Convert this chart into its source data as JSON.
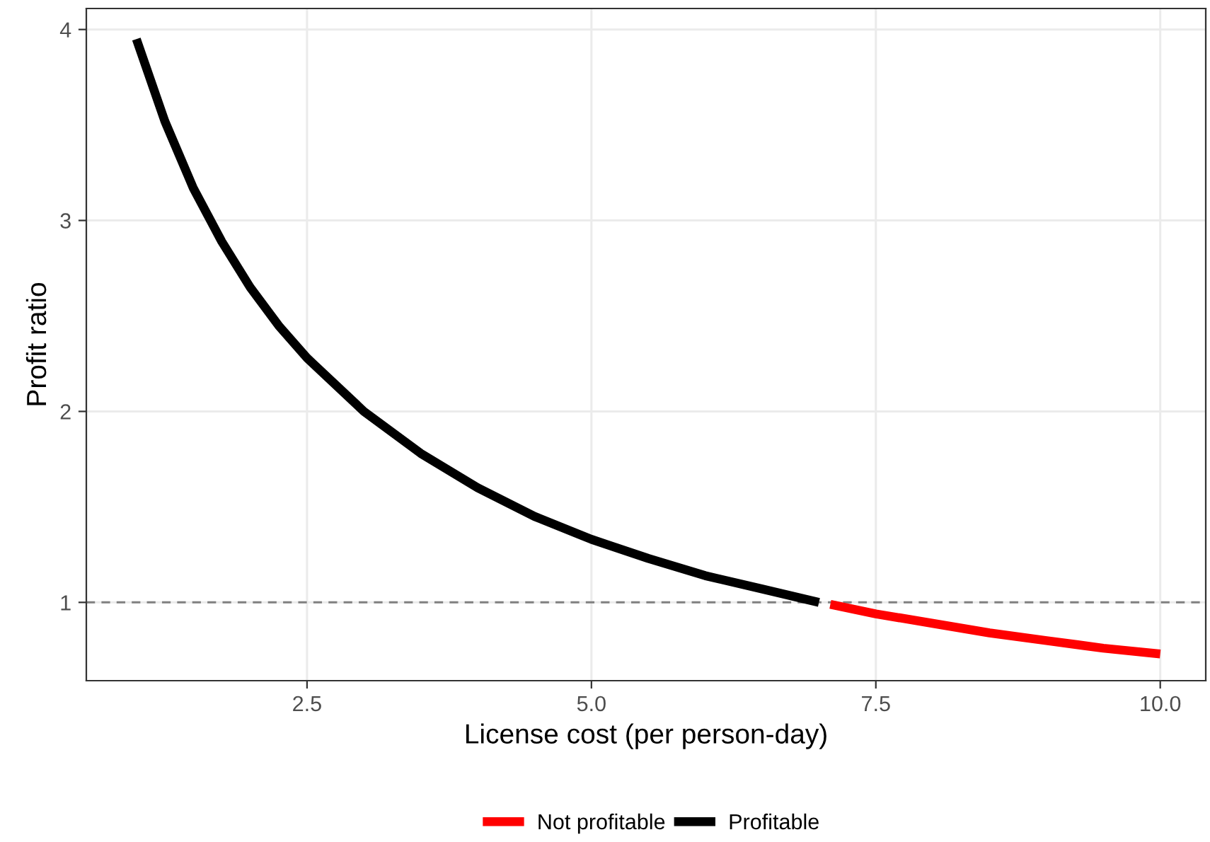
{
  "chart_data": {
    "type": "line",
    "xlabel": "License cost (per person-day)",
    "ylabel": "Profit ratio",
    "xlim": [
      0.56,
      10.4
    ],
    "ylim": [
      0.59,
      4.11
    ],
    "xticks": [
      {
        "value": 2.5,
        "label": "2.5"
      },
      {
        "value": 5,
        "label": "5.0"
      },
      {
        "value": 7.5,
        "label": "7.5"
      },
      {
        "value": 10,
        "label": "10.0"
      }
    ],
    "yticks": [
      1,
      2,
      3,
      4
    ],
    "grid": true,
    "legend": "bottom",
    "line_style": "solid",
    "marker": "none",
    "ref_lines": [
      {
        "axis": "y",
        "value": 1,
        "label": null,
        "color": "#808080",
        "line_style": "dashed"
      }
    ],
    "series": [
      {
        "name": "Not profitable",
        "color": "#ff0000",
        "x": [
          7.1,
          7.5,
          8,
          8.5,
          9,
          9.5,
          10
        ],
        "values": [
          0.99,
          0.94,
          0.89,
          0.84,
          0.8,
          0.76,
          0.73
        ]
      },
      {
        "name": "Profitable",
        "color": "#000000",
        "x": [
          1,
          1.25,
          1.5,
          1.75,
          2,
          2.25,
          2.5,
          3,
          3.5,
          4,
          4.5,
          5,
          5.5,
          6,
          6.5,
          7
        ],
        "values": [
          3.95,
          3.52,
          3.17,
          2.89,
          2.65,
          2.45,
          2.28,
          2.0,
          1.78,
          1.6,
          1.45,
          1.33,
          1.23,
          1.14,
          1.07,
          1.0
        ]
      }
    ]
  }
}
